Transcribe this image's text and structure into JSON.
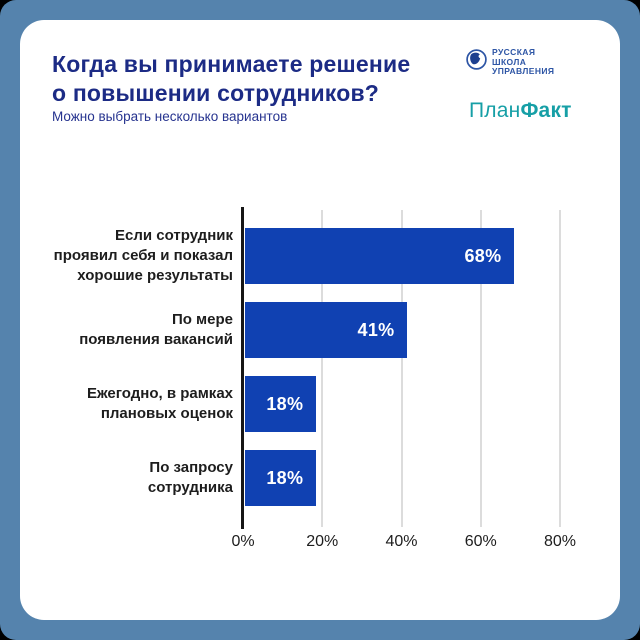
{
  "header": {
    "title": "Когда вы принимаете решение\nо повышении сотрудников?",
    "subtitle": "Можно выбрать несколько вариантов"
  },
  "logos": {
    "rsu_text": "РУССКАЯ\nШКОЛА\nУПРАВЛЕНИЯ",
    "planfact_regular": "План",
    "planfact_bold": "Факт"
  },
  "colors": {
    "frame_border": "#5583ad",
    "bar": "#1041b2",
    "title": "#1c2b85",
    "planfact_teal": "#169fa6",
    "rsu_blue": "#2d55a5",
    "gridline": "#dcdcdc",
    "axis": "#161616"
  },
  "chart_data": {
    "type": "bar",
    "orientation": "horizontal",
    "title": "Когда вы принимаете решение о повышении сотрудников?",
    "subtitle": "Можно выбрать несколько вариантов",
    "categories": [
      "Если сотрудник\nпроявил себя и показал\nхорошие результаты",
      "По мере\nпоявления вакансий",
      "Ежегодно, в рамках\nплановых оценок",
      "По запросу\nсотрудника"
    ],
    "values": [
      68,
      41,
      18,
      18
    ],
    "value_labels": [
      "68%",
      "41%",
      "18%",
      "18%"
    ],
    "x_ticks": [
      "0%",
      "20%",
      "40%",
      "60%",
      "80%"
    ],
    "x_tick_values": [
      0,
      20,
      40,
      60,
      80
    ],
    "xlim": [
      0,
      90
    ],
    "grid": "vertical",
    "legend": "none",
    "value_label_position": "inside-right"
  }
}
